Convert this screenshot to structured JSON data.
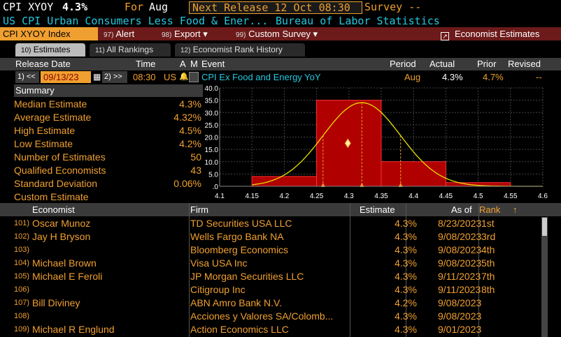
{
  "header": {
    "ticker": "CPI XYOY",
    "value": "4.3%",
    "for_label": "For",
    "period": "Aug",
    "next_release": "Next Release 12 Oct 08:30",
    "survey": "Survey --",
    "description": "US CPI Urban Consumers Less Food & Ener...",
    "source": "Bureau of Labor Statistics"
  },
  "menubar": {
    "index_label": "CPI XYOY Index",
    "alert": {
      "num": "97)",
      "label": "Alert"
    },
    "export": {
      "num": "98)",
      "label": "Export ▾"
    },
    "custom": {
      "num": "99)",
      "label": "Custom Survey ▾"
    },
    "economist": "Economist Estimates"
  },
  "tabs": [
    {
      "num": "10)",
      "label": "Estimates"
    },
    {
      "num": "11)",
      "label": "All Rankings"
    },
    {
      "num": "12)",
      "label": "Economist Rank History"
    }
  ],
  "release": {
    "headers": {
      "date": "Release Date",
      "time": "Time",
      "a": "A",
      "m": "M",
      "event": "Event",
      "period": "Period",
      "actual": "Actual",
      "prior": "Prior",
      "revised": "Revised"
    },
    "prev_btn": "1) <<",
    "date": "09/13/23",
    "next_btn": "2) >>",
    "time": "08:30",
    "country": "US",
    "event": "CPI Ex Food and Energy YoY",
    "period": "Aug",
    "actual": "4.3%",
    "prior": "4.7%",
    "revised": "--"
  },
  "summary": {
    "title": "Summary",
    "rows": [
      {
        "label": "Median Estimate",
        "value": "4.3%"
      },
      {
        "label": "Average Estimate",
        "value": "4.32%"
      },
      {
        "label": "High Estimate",
        "value": "4.5%"
      },
      {
        "label": "Low Estimate",
        "value": "4.2%"
      },
      {
        "label": "Number of Estimates",
        "value": "50"
      },
      {
        "label": "Qualified Economists",
        "value": "43"
      },
      {
        "label": "Standard Deviation",
        "value": "0.06%"
      },
      {
        "label": "Custom Estimate",
        "value": ""
      }
    ]
  },
  "chart_data": {
    "type": "bar",
    "x_ticks": [
      "4.1",
      "4.15",
      "4.2",
      "4.25",
      "4.3",
      "4.35",
      "4.4",
      "4.45",
      "4.5",
      "4.55",
      "4.6"
    ],
    "y_ticks": [
      "40.0",
      "35.0",
      "30.0",
      "25.0",
      "20.0",
      "15.0",
      "10.0",
      "5.0",
      ".0"
    ],
    "xlim": [
      4.1,
      4.6
    ],
    "ylim": [
      0,
      40
    ],
    "bins": [
      {
        "from": 4.15,
        "to": 4.25,
        "value": 4
      },
      {
        "from": 4.25,
        "to": 4.35,
        "value": 35
      },
      {
        "from": 4.35,
        "to": 4.45,
        "value": 10
      },
      {
        "from": 4.45,
        "to": 4.55,
        "value": 1.5
      }
    ],
    "normal_mean": 4.32,
    "normal_sd": 0.06,
    "normal_peak": 34,
    "dashed_markers": [
      4.26,
      4.32,
      4.38
    ],
    "diamond": {
      "x": 4.32,
      "y": 17.5
    },
    "colors": {
      "bar": "#b00000",
      "curve": "#e8e000",
      "grid": "#444444"
    }
  },
  "table": {
    "headers": {
      "economist": "Economist",
      "firm": "Firm",
      "estimate": "Estimate",
      "asof": "As of",
      "rank": "Rank",
      "sort": "↑"
    },
    "rows": [
      {
        "idx": "101)",
        "name": "Oscar Munoz",
        "firm": "TD Securities USA LLC",
        "estimate": "4.3%",
        "asof": "8/23/2023",
        "rank": "1st"
      },
      {
        "idx": "102)",
        "name": "Jay H Bryson",
        "firm": "Wells Fargo Bank NA",
        "estimate": "4.3%",
        "asof": "9/08/2023",
        "rank": "3rd"
      },
      {
        "idx": "103)",
        "name": "",
        "firm": "Bloomberg Economics",
        "estimate": "4.3%",
        "asof": "9/08/2023",
        "rank": "4th"
      },
      {
        "idx": "104)",
        "name": "Michael Brown",
        "firm": "Visa USA Inc",
        "estimate": "4.3%",
        "asof": "9/08/2023",
        "rank": "5th"
      },
      {
        "idx": "105)",
        "name": "Michael E Feroli",
        "firm": "JP Morgan Securities LLC",
        "estimate": "4.3%",
        "asof": "9/11/2023",
        "rank": "7th"
      },
      {
        "idx": "106)",
        "name": "",
        "firm": "Citigroup Inc",
        "estimate": "4.3%",
        "asof": "9/11/2023",
        "rank": "8th"
      },
      {
        "idx": "107)",
        "name": "Bill Diviney",
        "firm": "ABN Amro Bank N.V.",
        "estimate": "4.2%",
        "asof": "9/08/2023",
        "rank": ""
      },
      {
        "idx": "108)",
        "name": "",
        "firm": "Acciones y Valores SA/Colomb...",
        "estimate": "4.3%",
        "asof": "9/08/2023",
        "rank": ""
      },
      {
        "idx": "109)",
        "name": "Michael R Englund",
        "firm": "Action Economics LLC",
        "estimate": "4.3%",
        "asof": "9/01/2023",
        "rank": ""
      }
    ]
  }
}
